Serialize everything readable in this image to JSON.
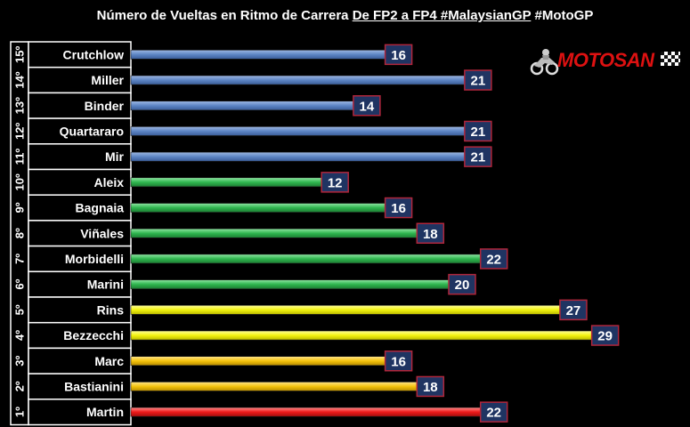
{
  "title": {
    "prefix": "Número de Vueltas en Ritmo de Carrera ",
    "underlined": "De FP2 a FP4 #MalaysianGP",
    "suffix": "  #MotoGP"
  },
  "logo": {
    "text": "MOTOSAN",
    "icon": "motorbike-rider-icon"
  },
  "colors": {
    "blue": "#5d85c4",
    "green": "#2fb64f",
    "yellow": "#f2f20e",
    "orange": "#f5c30b",
    "red": "#ee1b1b",
    "value_box": "#1f3462",
    "value_border": "#b0263b"
  },
  "chart_data": {
    "type": "bar",
    "orientation": "horizontal",
    "title": "Número de Vueltas en Ritmo de Carrera De FP2 a FP4 #MalaysianGP  #MotoGP",
    "xlim": [
      0,
      30
    ],
    "grid": false,
    "bars": [
      {
        "position": "15º",
        "rider": "Crutchlow",
        "value": 16,
        "color": "blue"
      },
      {
        "position": "14º",
        "rider": "Miller",
        "value": 21,
        "color": "blue"
      },
      {
        "position": "13º",
        "rider": "Binder",
        "value": 14,
        "color": "blue"
      },
      {
        "position": "12º",
        "rider": "Quartararo",
        "value": 21,
        "color": "blue"
      },
      {
        "position": "11º",
        "rider": "Mir",
        "value": 21,
        "color": "blue"
      },
      {
        "position": "10º",
        "rider": "Aleix",
        "value": 12,
        "color": "green"
      },
      {
        "position": "9º",
        "rider": "Bagnaia",
        "value": 16,
        "color": "green"
      },
      {
        "position": "8º",
        "rider": "Viñales",
        "value": 18,
        "color": "green"
      },
      {
        "position": "7º",
        "rider": "Morbidelli",
        "value": 22,
        "color": "green"
      },
      {
        "position": "6º",
        "rider": "Marini",
        "value": 20,
        "color": "green"
      },
      {
        "position": "5º",
        "rider": "Rins",
        "value": 27,
        "color": "yellow"
      },
      {
        "position": "4º",
        "rider": "Bezzecchi",
        "value": 29,
        "color": "yellow"
      },
      {
        "position": "3º",
        "rider": "Marc",
        "value": 16,
        "color": "orange"
      },
      {
        "position": "2º",
        "rider": "Bastianini",
        "value": 18,
        "color": "orange"
      },
      {
        "position": "1º",
        "rider": "Martin",
        "value": 22,
        "color": "red"
      }
    ]
  }
}
